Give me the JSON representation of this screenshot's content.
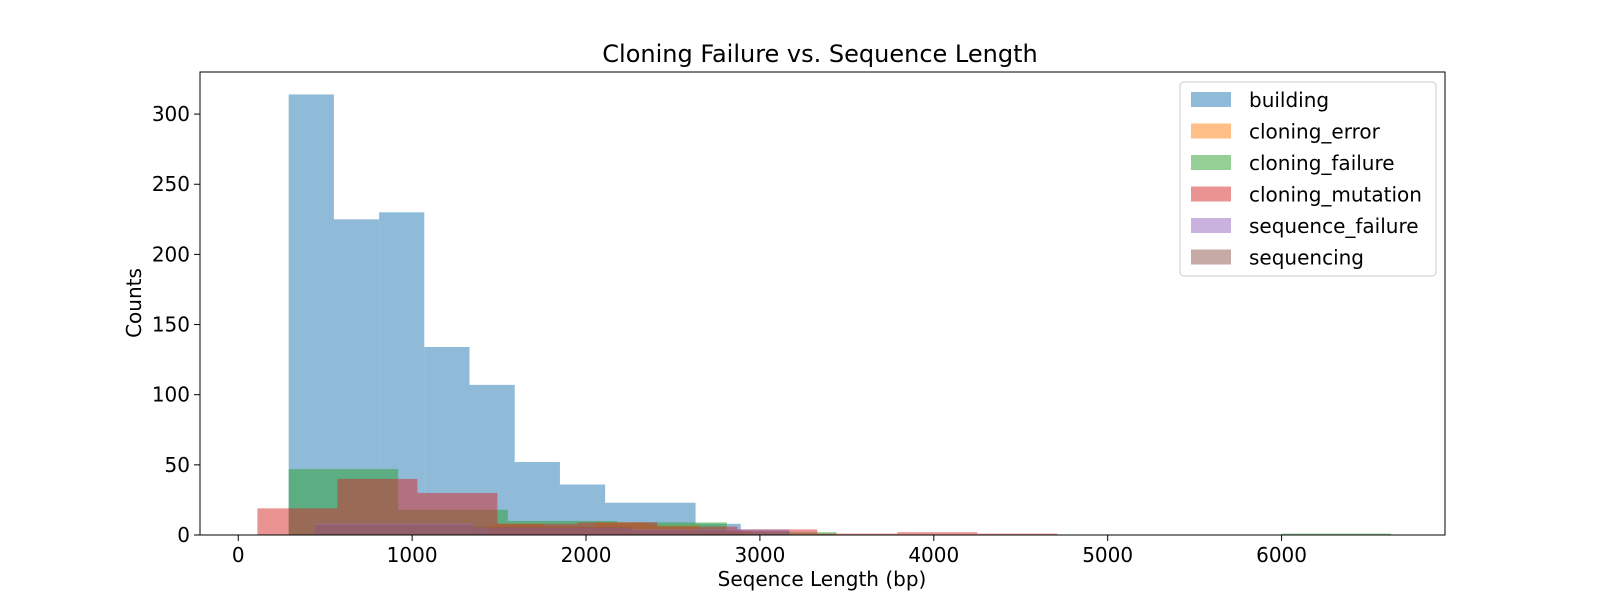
{
  "chart_data": {
    "type": "histogram",
    "title": "Cloning Failure vs. Sequence Length",
    "xlabel": "Seqence Length (bp)",
    "ylabel": "Counts",
    "xlim": [
      -220,
      6940
    ],
    "ylim": [
      0,
      330
    ],
    "xticks": [
      0,
      1000,
      2000,
      3000,
      4000,
      5000,
      6000
    ],
    "yticks": [
      0,
      50,
      100,
      150,
      200,
      250,
      300
    ],
    "grid": false,
    "legend_position": "top-right",
    "opacity": 0.5,
    "series": [
      {
        "name": "building",
        "color": "#1f77b4",
        "bins": [
          {
            "x0": 290,
            "x1": 550,
            "count": 314
          },
          {
            "x0": 550,
            "x1": 810,
            "count": 225
          },
          {
            "x0": 810,
            "x1": 1070,
            "count": 230
          },
          {
            "x0": 1070,
            "x1": 1330,
            "count": 134
          },
          {
            "x0": 1330,
            "x1": 1590,
            "count": 107
          },
          {
            "x0": 1590,
            "x1": 1850,
            "count": 52
          },
          {
            "x0": 1850,
            "x1": 2110,
            "count": 36
          },
          {
            "x0": 2110,
            "x1": 2370,
            "count": 23
          },
          {
            "x0": 2370,
            "x1": 2630,
            "count": 23
          },
          {
            "x0": 2630,
            "x1": 2890,
            "count": 8
          }
        ]
      },
      {
        "name": "cloning_error",
        "color": "#ff7f0e",
        "bins": [
          {
            "x0": 1450,
            "x1": 1750,
            "count": 8
          },
          {
            "x0": 1750,
            "x1": 2050,
            "count": 6
          },
          {
            "x0": 2050,
            "x1": 2350,
            "count": 9
          },
          {
            "x0": 2350,
            "x1": 2650,
            "count": 7
          },
          {
            "x0": 2650,
            "x1": 2950,
            "count": 3
          }
        ]
      },
      {
        "name": "cloning_failure",
        "color": "#2ca02c",
        "bins": [
          {
            "x0": 290,
            "x1": 920,
            "count": 47
          },
          {
            "x0": 920,
            "x1": 1550,
            "count": 18
          },
          {
            "x0": 1550,
            "x1": 2180,
            "count": 10
          },
          {
            "x0": 2180,
            "x1": 2810,
            "count": 9
          },
          {
            "x0": 2810,
            "x1": 3440,
            "count": 2
          },
          {
            "x0": 6000,
            "x1": 6630,
            "count": 1
          }
        ]
      },
      {
        "name": "cloning_mutation",
        "color": "#d62728",
        "bins": [
          {
            "x0": 110,
            "x1": 570,
            "count": 19
          },
          {
            "x0": 570,
            "x1": 1030,
            "count": 40
          },
          {
            "x0": 1030,
            "x1": 1490,
            "count": 30
          },
          {
            "x0": 1490,
            "x1": 1950,
            "count": 8
          },
          {
            "x0": 1950,
            "x1": 2410,
            "count": 9
          },
          {
            "x0": 2410,
            "x1": 2870,
            "count": 6
          },
          {
            "x0": 2870,
            "x1": 3330,
            "count": 4
          },
          {
            "x0": 3330,
            "x1": 3790,
            "count": 1
          },
          {
            "x0": 3790,
            "x1": 4250,
            "count": 2
          },
          {
            "x0": 4250,
            "x1": 4710,
            "count": 1
          }
        ]
      },
      {
        "name": "sequence_failure",
        "color": "#9467bd",
        "bins": [
          {
            "x0": 440,
            "x1": 1350,
            "count": 8
          },
          {
            "x0": 1350,
            "x1": 2260,
            "count": 5
          },
          {
            "x0": 2260,
            "x1": 3170,
            "count": 4
          }
        ]
      },
      {
        "name": "sequencing",
        "color": "#8c564b",
        "bins": [
          {
            "x0": 440,
            "x1": 1350,
            "count": 7
          },
          {
            "x0": 1350,
            "x1": 2260,
            "count": 6
          },
          {
            "x0": 2260,
            "x1": 3170,
            "count": 3
          }
        ]
      }
    ]
  }
}
